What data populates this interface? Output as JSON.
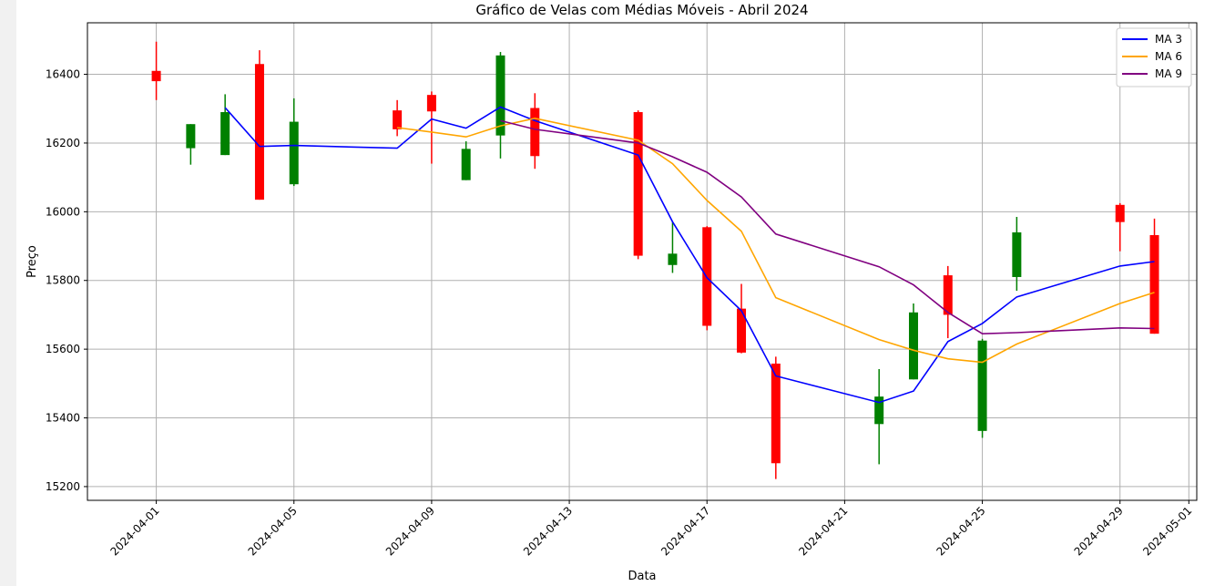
{
  "chart_data": {
    "type": "candlestick",
    "title": "Gráfico de Velas com Médias Móveis - Abril 2024",
    "xlabel": "Data",
    "ylabel": "Preço",
    "ylim": [
      15160,
      16550
    ],
    "xlim": [
      "2024-03-30",
      "2024-05-01"
    ],
    "grid": true,
    "legend_position": "top-right",
    "x_tick_labels": [
      "2024-04-01",
      "2024-04-05",
      "2024-04-09",
      "2024-04-13",
      "2024-04-17",
      "2024-04-21",
      "2024-04-25",
      "2024-04-29",
      "2024-05-01"
    ],
    "y_ticks": [
      15200,
      15400,
      15600,
      15800,
      16000,
      16200,
      16400
    ],
    "colors": {
      "up": "#008000",
      "down": "#ff0000",
      "ma3": "#0000ff",
      "ma6": "#ffa500",
      "ma9": "#800080"
    },
    "candles": [
      {
        "date": "2024-04-01",
        "open": 16410,
        "high": 16495,
        "low": 16325,
        "close": 16380
      },
      {
        "date": "2024-04-02",
        "open": 16185,
        "high": 16255,
        "low": 16137,
        "close": 16255
      },
      {
        "date": "2024-04-03",
        "open": 16165,
        "high": 16342,
        "low": 16165,
        "close": 16290
      },
      {
        "date": "2024-04-04",
        "open": 16430,
        "high": 16470,
        "low": 16035,
        "close": 16035
      },
      {
        "date": "2024-04-05",
        "open": 16080,
        "high": 16330,
        "low": 16075,
        "close": 16262
      },
      {
        "date": "2024-04-08",
        "open": 16295,
        "high": 16325,
        "low": 16220,
        "close": 16240
      },
      {
        "date": "2024-04-09",
        "open": 16340,
        "high": 16350,
        "low": 16140,
        "close": 16292
      },
      {
        "date": "2024-04-10",
        "open": 16092,
        "high": 16205,
        "low": 16092,
        "close": 16183
      },
      {
        "date": "2024-04-11",
        "open": 16222,
        "high": 16465,
        "low": 16155,
        "close": 16455
      },
      {
        "date": "2024-04-12",
        "open": 16302,
        "high": 16345,
        "low": 16125,
        "close": 16162
      },
      {
        "date": "2024-04-15",
        "open": 16290,
        "high": 16295,
        "low": 15862,
        "close": 15872
      },
      {
        "date": "2024-04-16",
        "open": 15845,
        "high": 15970,
        "low": 15822,
        "close": 15878
      },
      {
        "date": "2024-04-17",
        "open": 15955,
        "high": 15958,
        "low": 15655,
        "close": 15668
      },
      {
        "date": "2024-04-18",
        "open": 15718,
        "high": 15790,
        "low": 15588,
        "close": 15590
      },
      {
        "date": "2024-04-19",
        "open": 15558,
        "high": 15578,
        "low": 15222,
        "close": 15268
      },
      {
        "date": "2024-04-22",
        "open": 15382,
        "high": 15542,
        "low": 15265,
        "close": 15462
      },
      {
        "date": "2024-04-23",
        "open": 15512,
        "high": 15733,
        "low": 15512,
        "close": 15707
      },
      {
        "date": "2024-04-24",
        "open": 15815,
        "high": 15842,
        "low": 15632,
        "close": 15700
      },
      {
        "date": "2024-04-25",
        "open": 15362,
        "high": 15630,
        "low": 15342,
        "close": 15625
      },
      {
        "date": "2024-04-26",
        "open": 15810,
        "high": 15985,
        "low": 15770,
        "close": 15940
      },
      {
        "date": "2024-04-29",
        "open": 16020,
        "high": 16025,
        "low": 15885,
        "close": 15970
      },
      {
        "date": "2024-04-30",
        "open": 15932,
        "high": 15980,
        "low": 15645,
        "close": 15645
      }
    ],
    "series": [
      {
        "name": "MA 3",
        "color": "#0000ff",
        "points": [
          [
            "2024-04-03",
            16303
          ],
          [
            "2024-04-04",
            16190
          ],
          [
            "2024-04-05",
            16193
          ],
          [
            "2024-04-08",
            16185
          ],
          [
            "2024-04-09",
            16270
          ],
          [
            "2024-04-10",
            16243
          ],
          [
            "2024-04-11",
            16305
          ],
          [
            "2024-04-12",
            16265
          ],
          [
            "2024-04-15",
            16165
          ],
          [
            "2024-04-16",
            15971
          ],
          [
            "2024-04-17",
            15808
          ],
          [
            "2024-04-18",
            15712
          ],
          [
            "2024-04-19",
            15522
          ],
          [
            "2024-04-22",
            15445
          ],
          [
            "2024-04-23",
            15478
          ],
          [
            "2024-04-24",
            15622
          ],
          [
            "2024-04-25",
            15675
          ],
          [
            "2024-04-26",
            15752
          ],
          [
            "2024-04-29",
            15842
          ],
          [
            "2024-04-30",
            15855
          ]
        ]
      },
      {
        "name": "MA 6",
        "color": "#ffa500",
        "points": [
          [
            "2024-04-08",
            16245
          ],
          [
            "2024-04-09",
            16232
          ],
          [
            "2024-04-10",
            16218
          ],
          [
            "2024-04-11",
            16250
          ],
          [
            "2024-04-12",
            16272
          ],
          [
            "2024-04-15",
            16208
          ],
          [
            "2024-04-16",
            16140
          ],
          [
            "2024-04-17",
            16033
          ],
          [
            "2024-04-18",
            15943
          ],
          [
            "2024-04-19",
            15750
          ],
          [
            "2024-04-22",
            15628
          ],
          [
            "2024-04-23",
            15597
          ],
          [
            "2024-04-24",
            15572
          ],
          [
            "2024-04-25",
            15562
          ],
          [
            "2024-04-26",
            15615
          ],
          [
            "2024-04-29",
            15733
          ],
          [
            "2024-04-30",
            15765
          ]
        ]
      },
      {
        "name": "MA 9",
        "color": "#800080",
        "points": [
          [
            "2024-04-11",
            16265
          ],
          [
            "2024-04-12",
            16240
          ],
          [
            "2024-04-15",
            16200
          ],
          [
            "2024-04-16",
            16160
          ],
          [
            "2024-04-17",
            16115
          ],
          [
            "2024-04-18",
            16043
          ],
          [
            "2024-04-19",
            15935
          ],
          [
            "2024-04-22",
            15840
          ],
          [
            "2024-04-23",
            15787
          ],
          [
            "2024-04-24",
            15707
          ],
          [
            "2024-04-25",
            15645
          ],
          [
            "2024-04-26",
            15648
          ],
          [
            "2024-04-29",
            15662
          ],
          [
            "2024-04-30",
            15660
          ]
        ]
      }
    ]
  }
}
